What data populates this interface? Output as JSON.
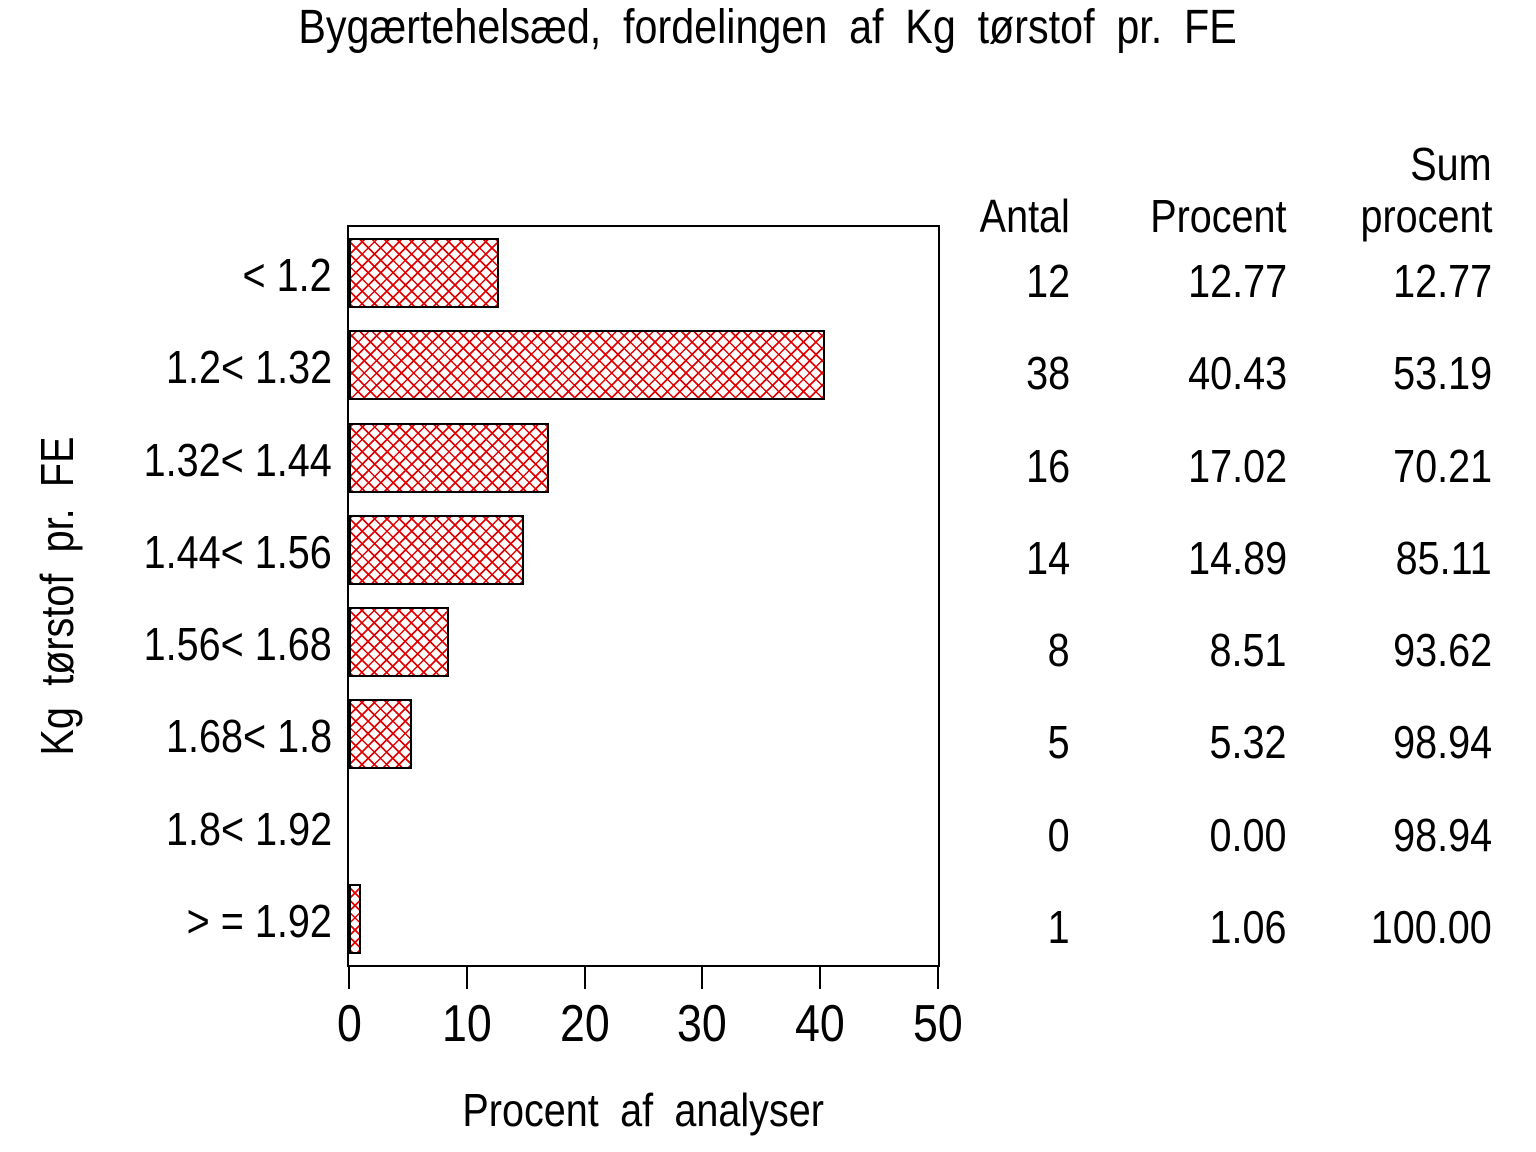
{
  "title": "Bygærtehelsæd, fordelingen af Kg tørstof pr. FE",
  "chart_data": {
    "type": "bar",
    "orientation": "horizontal",
    "title": "Bygærtehelsæd, fordelingen af Kg tørstof pr. FE",
    "categories": [
      "< 1.2",
      "1.2< 1.32",
      "1.32< 1.44",
      "1.44< 1.56",
      "1.56< 1.68",
      "1.68< 1.8",
      "1.8< 1.92",
      "> = 1.92"
    ],
    "values": [
      12.77,
      40.43,
      17.02,
      14.89,
      8.51,
      5.32,
      0,
      1.06
    ],
    "counts": [
      12,
      38,
      16,
      14,
      8,
      5,
      0,
      1
    ],
    "xlabel": "Procent af analyser",
    "ylabel": "Kg tørstof pr. FE",
    "xlim": [
      0,
      50
    ],
    "xticks": [
      0,
      10,
      20,
      30,
      40,
      50
    ],
    "grid": false,
    "legend": "none",
    "bar_fill_style": "diagonal-crosshatch",
    "bar_color": "#e00000",
    "bar_border_color": "#000000"
  },
  "table": {
    "header": {
      "antal": "Antal",
      "procent": "Procent",
      "sum_line1": "Sum",
      "sum_line2": "procent"
    },
    "rows": [
      {
        "antal": "12",
        "procent": "12.77",
        "sum": "12.77"
      },
      {
        "antal": "38",
        "procent": "40.43",
        "sum": "53.19"
      },
      {
        "antal": "16",
        "procent": "17.02",
        "sum": "70.21"
      },
      {
        "antal": "14",
        "procent": "14.89",
        "sum": "85.11"
      },
      {
        "antal": "8",
        "procent": "8.51",
        "sum": "93.62"
      },
      {
        "antal": "5",
        "procent": "5.32",
        "sum": "98.94"
      },
      {
        "antal": "0",
        "procent": "0.00",
        "sum": "98.94"
      },
      {
        "antal": "1",
        "procent": "1.06",
        "sum": "100.00"
      }
    ]
  }
}
